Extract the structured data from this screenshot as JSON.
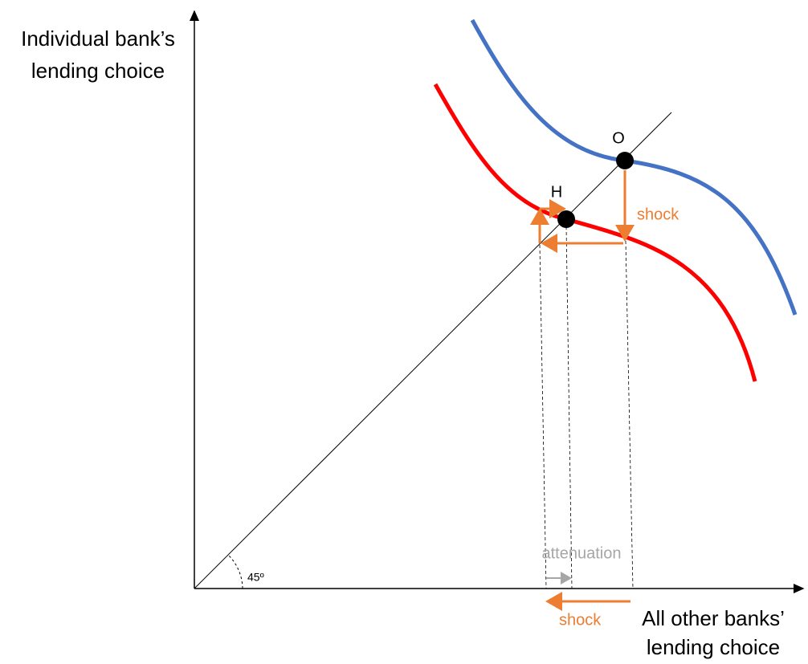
{
  "axes": {
    "y_label": [
      "Individual bank’s",
      "lending choice"
    ],
    "x_label": [
      "All other banks’",
      "lending choice"
    ],
    "angle_label": "45º"
  },
  "points": [
    {
      "label": "O"
    },
    {
      "label": "H"
    }
  ],
  "annotations": {
    "shock_vertical": "shock",
    "shock_horizontal": "shock",
    "attenuation": "attenuation"
  }
}
